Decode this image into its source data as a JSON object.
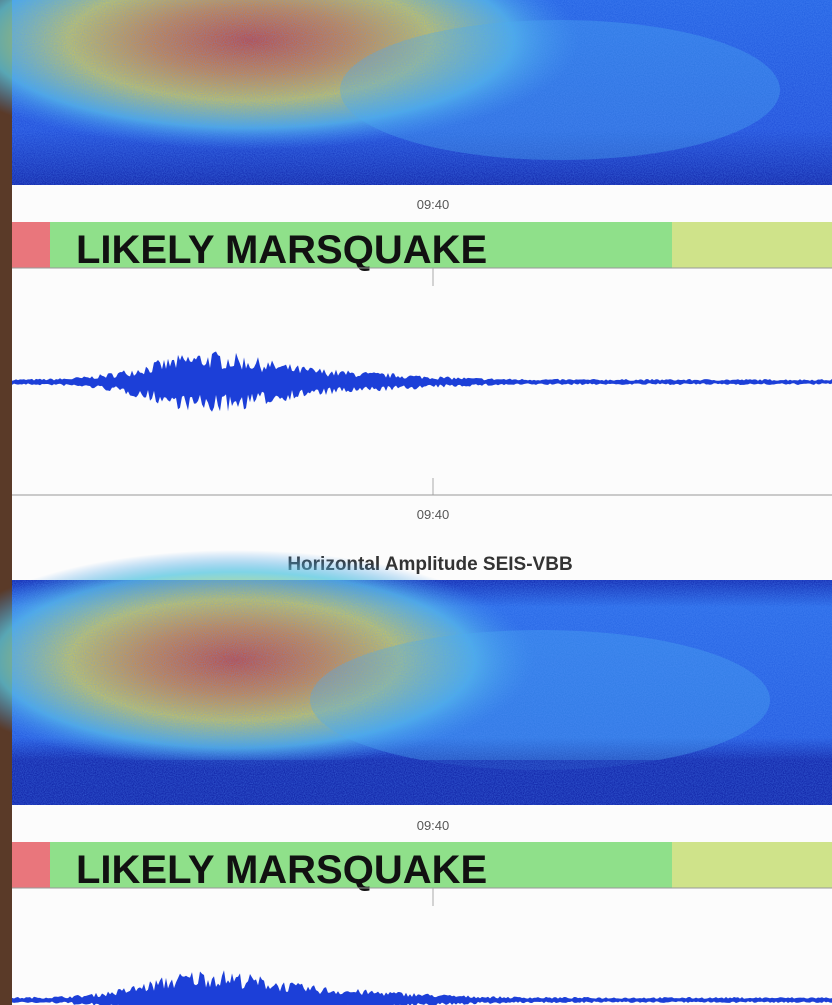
{
  "upper": {
    "time_label_top": "09:40",
    "banner": "LIKELY MARSQUAKE",
    "time_label_bottom": "09:40"
  },
  "section_title": "Horizontal Amplitude SEIS-VBB",
  "lower": {
    "time_label_top": "09:40",
    "banner": "LIKELY MARSQUAKE"
  }
}
